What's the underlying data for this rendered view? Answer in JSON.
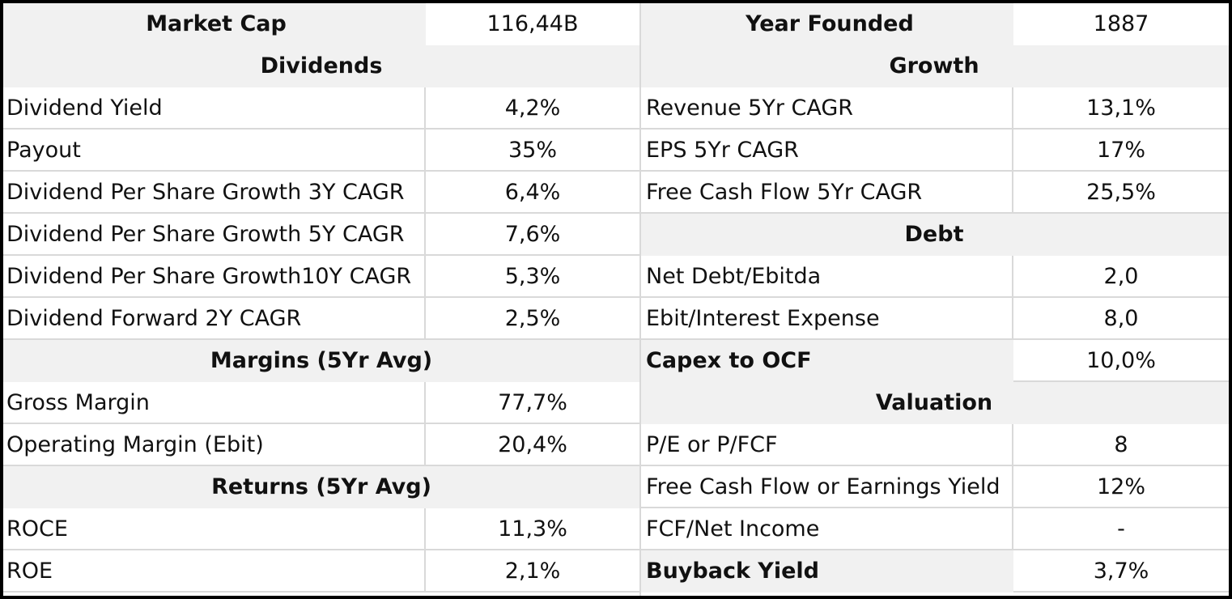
{
  "left": {
    "market_cap": {
      "label": "Market  Cap",
      "value": "116,44B"
    },
    "dividends": {
      "title": "Dividends",
      "rows": [
        {
          "label": "Dividend Yield",
          "value": "4,2%"
        },
        {
          "label": "Payout",
          "value": "35%"
        },
        {
          "label": "Dividend Per Share Growth 3Y CAGR",
          "value": "6,4%"
        },
        {
          "label": "Dividend Per Share Growth 5Y CAGR",
          "value": "7,6%"
        },
        {
          "label": "Dividend Per Share Growth10Y CAGR",
          "value": "5,3%"
        },
        {
          "label": "Dividend Forward 2Y CAGR",
          "value": "2,5%"
        }
      ]
    },
    "margins": {
      "title": "Margins (5Yr Avg)",
      "rows": [
        {
          "label": "Gross Margin",
          "value": "77,7%"
        },
        {
          "label": "Operating Margin (Ebit)",
          "value": "20,4%"
        }
      ]
    },
    "returns": {
      "title": "Returns (5Yr Avg)",
      "rows": [
        {
          "label": "ROCE",
          "value": "11,3%"
        },
        {
          "label": "ROE",
          "value": "2,1%"
        }
      ]
    }
  },
  "right": {
    "year_founded": {
      "label": "Year Founded",
      "value": "1887"
    },
    "growth": {
      "title": "Growth",
      "rows": [
        {
          "label": "Revenue 5Yr CAGR",
          "value": "13,1%"
        },
        {
          "label": "EPS 5Yr CAGR",
          "value": "17%"
        },
        {
          "label": "Free Cash Flow 5Yr CAGR",
          "value": "25,5%"
        }
      ]
    },
    "debt": {
      "title": "Debt",
      "rows": [
        {
          "label": "Net Debt/Ebitda",
          "value": "2,0"
        },
        {
          "label": "Ebit/Interest Expense",
          "value": "8,0"
        }
      ]
    },
    "capex": {
      "label": "Capex to OCF",
      "value": "10,0%"
    },
    "valuation": {
      "title": "Valuation",
      "rows": [
        {
          "label": "P/E or P/FCF",
          "value": "8"
        },
        {
          "label": "Free Cash Flow or Earnings Yield",
          "value": "12%"
        },
        {
          "label": "FCF/Net Income",
          "value": "-"
        }
      ]
    },
    "buyback": {
      "label": "Buyback Yield",
      "value": "3,7%"
    }
  }
}
